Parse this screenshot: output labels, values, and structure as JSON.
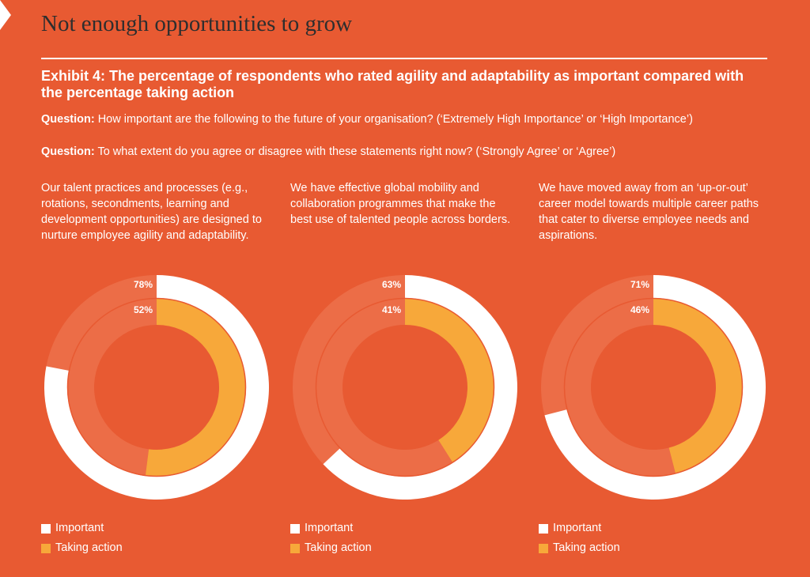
{
  "page_title": "Not enough opportunities to grow",
  "exhibit_title": "Exhibit 4: The percentage of respondents who rated agility and adaptability as important compared with the percentage taking action",
  "questions": [
    {
      "label": "Question:",
      "text": " How important are the following to the future of your organisation? (‘Extremely High Importance’ or ‘High Importance’)"
    },
    {
      "label": "Question:",
      "text": " To what extent do you agree or disagree with these statements right now? (‘Strongly Agree’ or ‘Agree’)"
    }
  ],
  "colors": {
    "background": "#e85a32",
    "important": "#ffffff",
    "taking_action": "#f7a83a",
    "track": "#ec6d47"
  },
  "chart_data": [
    {
      "type": "pie",
      "description": "Our talent practices and processes (e.g., rotations, secondments, learning and development opportunities) are designed to nurture employee agility and adaptability.",
      "series": [
        {
          "name": "Important",
          "value": 78,
          "label": "78%"
        },
        {
          "name": "Taking action",
          "value": 52,
          "label": "52%"
        }
      ],
      "legend": [
        "Important",
        "Taking action"
      ]
    },
    {
      "type": "pie",
      "description": "We have effective global mobility and collaboration programmes that make the best use of talented people across borders.",
      "series": [
        {
          "name": "Important",
          "value": 63,
          "label": "63%"
        },
        {
          "name": "Taking action",
          "value": 41,
          "label": "41%"
        }
      ],
      "legend": [
        "Important",
        "Taking action"
      ]
    },
    {
      "type": "pie",
      "description": "We have moved away from an ‘up-or-out’ career model towards multiple career paths that cater to diverse employee needs and aspirations.",
      "series": [
        {
          "name": "Important",
          "value": 71,
          "label": "71%"
        },
        {
          "name": "Taking action",
          "value": 46,
          "label": "46%"
        }
      ],
      "legend": [
        "Important",
        "Taking action"
      ]
    }
  ]
}
